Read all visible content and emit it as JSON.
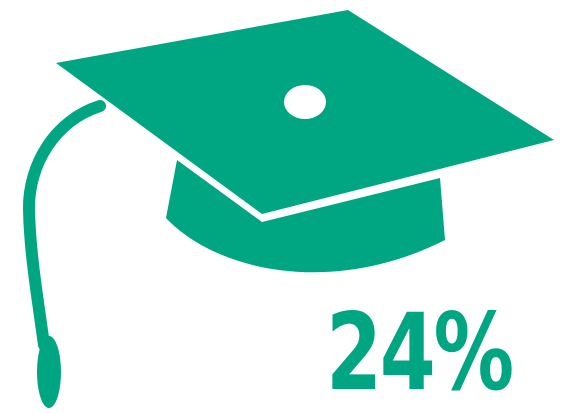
{
  "stat": {
    "value": "24%",
    "icon": "graduation-cap-icon",
    "color": "#00a682"
  }
}
